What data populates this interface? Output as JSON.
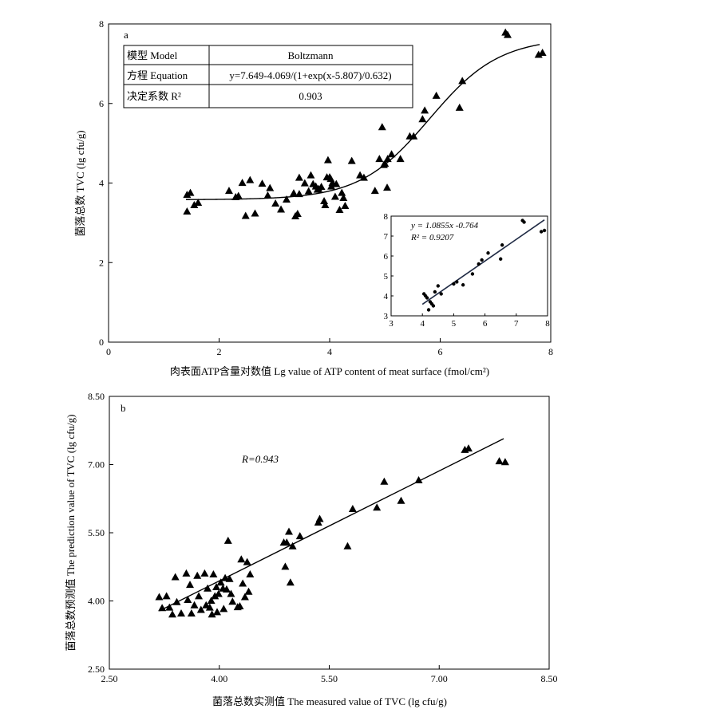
{
  "chart_data": [
    {
      "panel": "a",
      "type": "scatter",
      "panel_label": "a",
      "xlabel": "肉表面ATP含量对数值 Lg value of ATP content of meat surface (fmol/cm²)",
      "ylabel": "菌落总数 TVC (lg cfu/g)",
      "xlim": [
        0,
        8
      ],
      "ylim": [
        0,
        8
      ],
      "xticks": [
        "0",
        "2",
        "4",
        "6",
        "8"
      ],
      "yticks": [
        "0",
        "2",
        "4",
        "6",
        "8"
      ],
      "table": {
        "rows": [
          [
            "模型 Model",
            "Boltzmann"
          ],
          [
            "方程 Equation",
            "y=7.649-4.069/(1+exp(x-5.807)/0.632)"
          ],
          [
            "决定系数 R²",
            "0.903"
          ]
        ]
      },
      "fit": {
        "type": "boltzmann",
        "A1": 3.58,
        "A2": 7.649,
        "x0": 5.807,
        "dx": 0.632,
        "x_range": [
          1.4,
          7.8
        ]
      },
      "points": [
        [
          1.42,
          3.7
        ],
        [
          1.42,
          3.28
        ],
        [
          1.48,
          3.75
        ],
        [
          1.55,
          3.44
        ],
        [
          1.62,
          3.5
        ],
        [
          2.18,
          3.8
        ],
        [
          2.3,
          3.64
        ],
        [
          2.35,
          3.67
        ],
        [
          2.42,
          4.0
        ],
        [
          2.48,
          3.17
        ],
        [
          2.56,
          4.07
        ],
        [
          2.65,
          3.23
        ],
        [
          2.78,
          3.98
        ],
        [
          2.88,
          3.68
        ],
        [
          2.92,
          3.87
        ],
        [
          3.02,
          3.48
        ],
        [
          3.12,
          3.33
        ],
        [
          3.22,
          3.58
        ],
        [
          3.35,
          3.74
        ],
        [
          3.38,
          3.16
        ],
        [
          3.42,
          3.22
        ],
        [
          3.45,
          3.72
        ],
        [
          3.45,
          4.13
        ],
        [
          3.55,
          3.99
        ],
        [
          3.62,
          3.79
        ],
        [
          3.66,
          4.19
        ],
        [
          3.7,
          3.97
        ],
        [
          3.75,
          3.91
        ],
        [
          3.78,
          3.83
        ],
        [
          3.8,
          3.85
        ],
        [
          3.85,
          3.9
        ],
        [
          3.9,
          3.54
        ],
        [
          3.92,
          3.44
        ],
        [
          3.95,
          4.14
        ],
        [
          3.97,
          4.57
        ],
        [
          4.0,
          4.14
        ],
        [
          4.02,
          4.1
        ],
        [
          4.03,
          3.91
        ],
        [
          4.05,
          4.0
        ],
        [
          4.1,
          3.65
        ],
        [
          4.12,
          3.97
        ],
        [
          4.18,
          3.32
        ],
        [
          4.22,
          3.75
        ],
        [
          4.25,
          3.62
        ],
        [
          4.28,
          3.42
        ],
        [
          4.4,
          4.55
        ],
        [
          4.55,
          4.19
        ],
        [
          4.62,
          4.13
        ],
        [
          4.82,
          3.8
        ],
        [
          4.9,
          4.6
        ],
        [
          4.95,
          5.4
        ],
        [
          4.98,
          4.45
        ],
        [
          5.0,
          4.48
        ],
        [
          5.04,
          3.88
        ],
        [
          5.05,
          4.6
        ],
        [
          5.12,
          4.72
        ],
        [
          5.28,
          4.6
        ],
        [
          5.45,
          5.17
        ],
        [
          5.52,
          5.17
        ],
        [
          5.68,
          5.6
        ],
        [
          5.72,
          5.82
        ],
        [
          5.93,
          6.19
        ],
        [
          6.35,
          5.89
        ],
        [
          6.4,
          6.56
        ],
        [
          7.18,
          7.78
        ],
        [
          7.22,
          7.72
        ],
        [
          7.78,
          7.22
        ],
        [
          7.85,
          7.27
        ]
      ],
      "inset": {
        "type": "scatter",
        "xlim": [
          3,
          8
        ],
        "ylim": [
          3,
          8
        ],
        "xticks": [
          "3",
          "4",
          "5",
          "6",
          "7",
          "8"
        ],
        "yticks": [
          "3",
          "4",
          "5",
          "6",
          "7",
          "8"
        ],
        "equation": "y = 1.0855x -0.764",
        "r2": "R² = 0.9207",
        "fit": {
          "slope": 1.0855,
          "intercept": -0.764,
          "x_range": [
            4.0,
            7.9
          ]
        },
        "points": [
          [
            4.05,
            4.1
          ],
          [
            4.1,
            4.0
          ],
          [
            4.15,
            3.9
          ],
          [
            4.2,
            3.3
          ],
          [
            4.25,
            3.7
          ],
          [
            4.3,
            3.6
          ],
          [
            4.35,
            3.5
          ],
          [
            4.4,
            4.2
          ],
          [
            4.5,
            4.5
          ],
          [
            4.6,
            4.1
          ],
          [
            5.0,
            4.6
          ],
          [
            5.1,
            4.7
          ],
          [
            5.3,
            4.55
          ],
          [
            5.6,
            5.1
          ],
          [
            5.8,
            5.6
          ],
          [
            5.9,
            5.8
          ],
          [
            6.1,
            6.15
          ],
          [
            6.5,
            5.85
          ],
          [
            6.55,
            6.55
          ],
          [
            7.2,
            7.78
          ],
          [
            7.25,
            7.7
          ],
          [
            7.8,
            7.22
          ],
          [
            7.9,
            7.28
          ]
        ]
      }
    },
    {
      "panel": "b",
      "type": "scatter",
      "panel_label": "b",
      "xlabel": "菌落总数实测值 The measured value of TVC (lg cfu/g)",
      "ylabel": "菌落总数预测值 The prediction value of TVC (lg cfu/g)",
      "xlim": [
        2.5,
        8.5
      ],
      "ylim": [
        2.5,
        8.5
      ],
      "xticks": [
        "2.50",
        "4.00",
        "5.50",
        "7.00",
        "8.50"
      ],
      "yticks": [
        "2.50",
        "4.00",
        "5.50",
        "7.00",
        "8.50"
      ],
      "r_label": "R=0.943",
      "fit": {
        "x": [
          3.18,
          7.88
        ],
        "y": [
          3.78,
          7.57
        ]
      },
      "points": [
        [
          3.18,
          4.08
        ],
        [
          3.22,
          3.84
        ],
        [
          3.28,
          4.1
        ],
        [
          3.32,
          3.85
        ],
        [
          3.36,
          3.7
        ],
        [
          3.4,
          4.52
        ],
        [
          3.42,
          3.97
        ],
        [
          3.48,
          3.72
        ],
        [
          3.55,
          4.6
        ],
        [
          3.57,
          4.02
        ],
        [
          3.6,
          4.35
        ],
        [
          3.62,
          3.72
        ],
        [
          3.66,
          3.9
        ],
        [
          3.7,
          4.55
        ],
        [
          3.72,
          4.1
        ],
        [
          3.75,
          3.8
        ],
        [
          3.8,
          4.6
        ],
        [
          3.82,
          3.9
        ],
        [
          3.84,
          4.27
        ],
        [
          3.87,
          3.85
        ],
        [
          3.89,
          4.0
        ],
        [
          3.9,
          3.7
        ],
        [
          3.92,
          4.58
        ],
        [
          3.94,
          4.1
        ],
        [
          3.96,
          4.3
        ],
        [
          3.97,
          3.75
        ],
        [
          3.99,
          4.15
        ],
        [
          4.02,
          4.4
        ],
        [
          4.05,
          4.27
        ],
        [
          4.06,
          3.82
        ],
        [
          4.08,
          4.5
        ],
        [
          4.1,
          4.25
        ],
        [
          4.12,
          5.32
        ],
        [
          4.14,
          4.48
        ],
        [
          4.16,
          4.15
        ],
        [
          4.18,
          3.98
        ],
        [
          4.25,
          3.86
        ],
        [
          4.28,
          3.88
        ],
        [
          4.3,
          4.91
        ],
        [
          4.32,
          4.38
        ],
        [
          4.35,
          4.08
        ],
        [
          4.38,
          4.85
        ],
        [
          4.4,
          4.2
        ],
        [
          4.42,
          4.58
        ],
        [
          4.88,
          5.28
        ],
        [
          4.9,
          4.75
        ],
        [
          4.92,
          5.28
        ],
        [
          4.95,
          5.52
        ],
        [
          4.97,
          4.4
        ],
        [
          5.0,
          5.2
        ],
        [
          5.1,
          5.42
        ],
        [
          5.35,
          5.72
        ],
        [
          5.37,
          5.8
        ],
        [
          5.75,
          5.2
        ],
        [
          5.82,
          6.02
        ],
        [
          6.15,
          6.05
        ],
        [
          6.25,
          6.62
        ],
        [
          6.48,
          6.2
        ],
        [
          6.72,
          6.65
        ],
        [
          7.35,
          7.32
        ],
        [
          7.4,
          7.35
        ],
        [
          7.82,
          7.07
        ],
        [
          7.9,
          7.05
        ]
      ]
    }
  ]
}
